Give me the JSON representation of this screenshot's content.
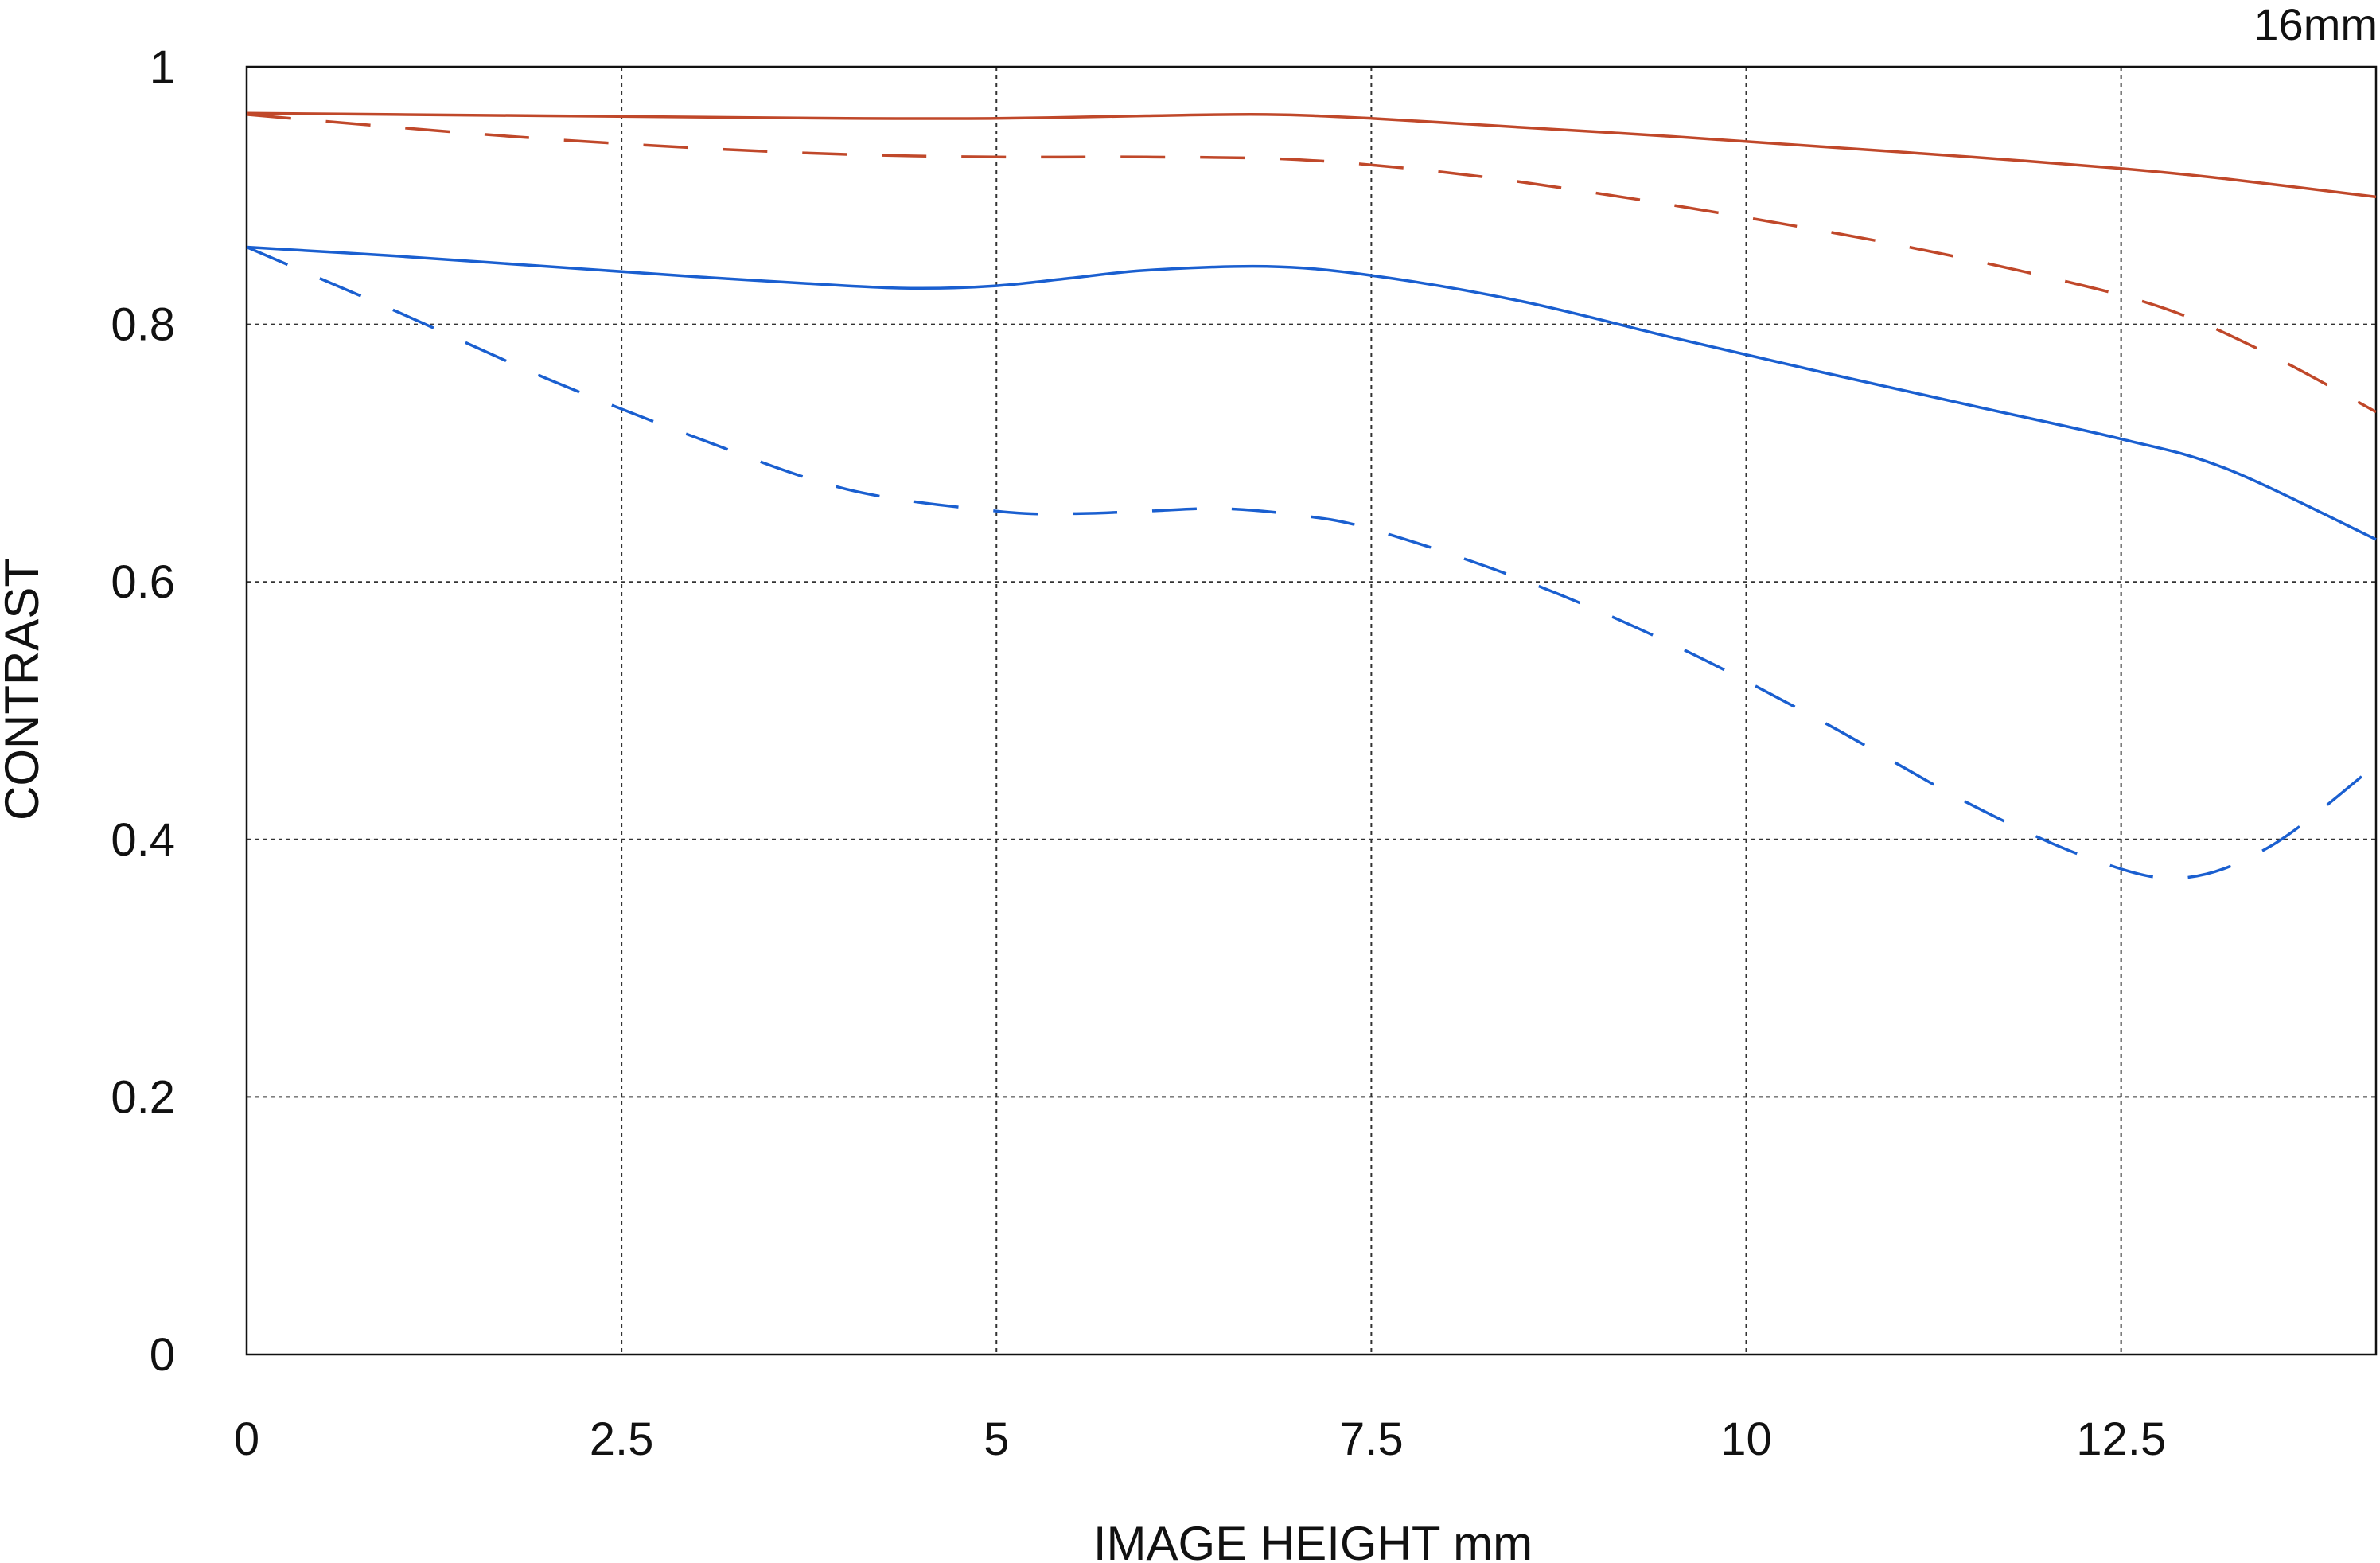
{
  "chart_data": {
    "type": "line",
    "title": "16mm",
    "xlabel": "IMAGE HEIGHT  mm",
    "ylabel": "CONTRAST",
    "xlim": [
      0,
      14.2
    ],
    "ylim": [
      0,
      1
    ],
    "x_ticks": [
      0,
      2.5,
      5,
      7.5,
      10,
      12.5
    ],
    "x_tick_labels": [
      "0",
      "2.5",
      "5",
      "7.5",
      "10",
      "12.5"
    ],
    "y_ticks": [
      0,
      0.2,
      0.4,
      0.6,
      0.8,
      1
    ],
    "y_tick_labels": [
      "0",
      "0.2",
      "0.4",
      "0.6",
      "0.8",
      "1"
    ],
    "grid": true,
    "series": [
      {
        "color": "#c0482a",
        "style": "solid",
        "x": [
          0,
          1,
          2,
          3,
          4,
          5,
          6,
          6.8,
          7.5,
          8.5,
          9.5,
          10.5,
          11.5,
          12.5,
          13.2,
          14.2
        ],
        "y": [
          0.964,
          0.963,
          0.962,
          0.961,
          0.96,
          0.96,
          0.962,
          0.963,
          0.96,
          0.953,
          0.946,
          0.938,
          0.93,
          0.921,
          0.913,
          0.899
        ]
      },
      {
        "color": "#c0482a",
        "style": "dashed",
        "x": [
          0,
          1,
          2,
          3,
          4,
          5,
          6,
          7,
          8,
          9,
          10,
          11,
          12,
          12.8,
          13.5,
          14.2
        ],
        "y": [
          0.963,
          0.953,
          0.944,
          0.937,
          0.932,
          0.93,
          0.93,
          0.928,
          0.918,
          0.902,
          0.883,
          0.862,
          0.837,
          0.812,
          0.776,
          0.732
        ]
      },
      {
        "color": "#1a5fd0",
        "style": "solid",
        "x": [
          0,
          1,
          2,
          3,
          4,
          4.5,
          5,
          5.5,
          6,
          6.8,
          7.5,
          8.5,
          9.5,
          10.5,
          11.5,
          12.5,
          13.2,
          14.2
        ],
        "y": [
          0.86,
          0.853,
          0.845,
          0.837,
          0.83,
          0.828,
          0.83,
          0.836,
          0.842,
          0.845,
          0.838,
          0.818,
          0.79,
          0.763,
          0.737,
          0.711,
          0.688,
          0.633
        ]
      },
      {
        "color": "#1a5fd0",
        "style": "dashed",
        "x": [
          0,
          1,
          2,
          3,
          4,
          5,
          5.5,
          6,
          6.5,
          7,
          7.5,
          8.5,
          9.5,
          10.5,
          11.5,
          12.3,
          12.9,
          13.5,
          14.2
        ],
        "y": [
          0.86,
          0.81,
          0.758,
          0.712,
          0.672,
          0.655,
          0.653,
          0.655,
          0.657,
          0.652,
          0.641,
          0.602,
          0.552,
          0.492,
          0.427,
          0.385,
          0.37,
          0.395,
          0.458
        ]
      }
    ]
  }
}
